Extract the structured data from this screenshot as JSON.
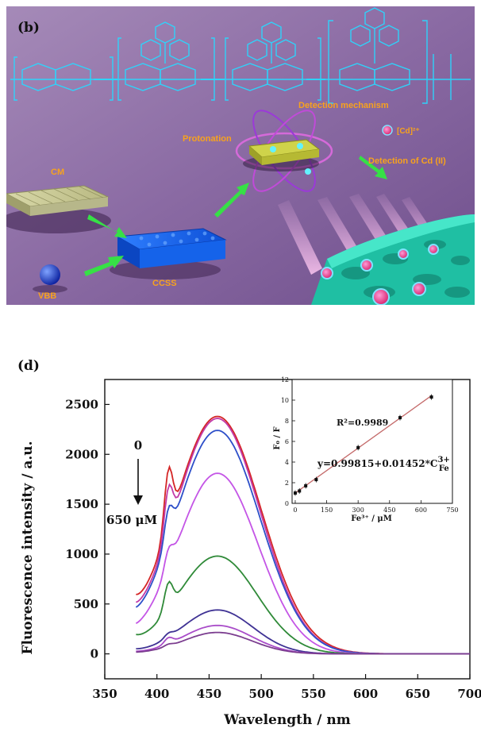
{
  "panel_b": {
    "letter": "(b)",
    "labels": {
      "cm": "CM",
      "vbb": "VBB",
      "ccss": "CCSS",
      "protonation": "Protonation",
      "detection_mechanism": "Detection mechanism",
      "detection_cd": "Detection of Cd (II)",
      "cd_ion": "[Cd]²⁺"
    },
    "colors": {
      "background": "#8e6fa6",
      "molecule": "#2ad8ff",
      "arrow": "#36e046",
      "label": "#f7a21e",
      "membrane": "#2fd6b8"
    }
  },
  "panel_d": {
    "letter": "(d)",
    "arrow_top": "0",
    "arrow_bottom": "650 μM"
  },
  "chart_data": [
    {
      "type": "line",
      "xlabel": "Wavelength / nm",
      "ylabel": "Fluorescence intensity / a.u.",
      "xlim": [
        350,
        700
      ],
      "ylim": [
        -250,
        2750
      ],
      "xticks": [
        350,
        400,
        450,
        500,
        550,
        600,
        650,
        700
      ],
      "yticks": [
        0,
        500,
        1000,
        1500,
        2000,
        2500
      ],
      "peak_x": 458,
      "series": [
        {
          "color": "#d42626",
          "peak": 2380,
          "sigma": 42,
          "baseline_start": 170,
          "shoulder": 580
        },
        {
          "color": "#c23aa8",
          "peak": 2360,
          "sigma": 41,
          "baseline_start": 130,
          "shoulder": 450
        },
        {
          "color": "#2d4fc9",
          "peak": 2240,
          "sigma": 41,
          "baseline_start": 100,
          "shoulder": 300
        },
        {
          "color": "#c455e6",
          "peak": 1810,
          "sigma": 39,
          "baseline_start": 60,
          "shoulder": 180
        },
        {
          "color": "#2f8a38",
          "peak": 980,
          "sigma": 38,
          "baseline_start": 75,
          "shoulder": 260
        },
        {
          "color": "#3f3294",
          "peak": 440,
          "sigma": 34,
          "baseline_start": 20,
          "shoulder": 40
        },
        {
          "color": "#a94cc9",
          "peak": 285,
          "sigma": 33,
          "baseline_start": 10,
          "shoulder": 60
        },
        {
          "color": "#7b3d8f",
          "peak": 215,
          "sigma": 33,
          "baseline_start": 5,
          "shoulder": 20
        }
      ]
    },
    {
      "type": "scatter",
      "xlabel": "Fe³⁺ / μM",
      "ylabel": "F₀ / F",
      "xlim": [
        -15,
        750
      ],
      "ylim": [
        0,
        12
      ],
      "xticks": [
        0,
        150,
        300,
        450,
        600,
        750
      ],
      "yticks": [
        0,
        2,
        4,
        6,
        8,
        10,
        12
      ],
      "points": [
        {
          "x": 0,
          "y": 1.0
        },
        {
          "x": 20,
          "y": 1.2
        },
        {
          "x": 50,
          "y": 1.7
        },
        {
          "x": 100,
          "y": 2.3
        },
        {
          "x": 300,
          "y": 5.4
        },
        {
          "x": 500,
          "y": 8.3
        },
        {
          "x": 650,
          "y": 10.3
        }
      ],
      "fit": {
        "intercept": 0.99815,
        "slope": 0.01452
      },
      "r2_text": "R²=0.9989",
      "equation_text": "y=0.99815+0.01452*C",
      "equation_sup": "3+",
      "equation_sub": "Fe",
      "line_color": "#c46a6a"
    }
  ]
}
